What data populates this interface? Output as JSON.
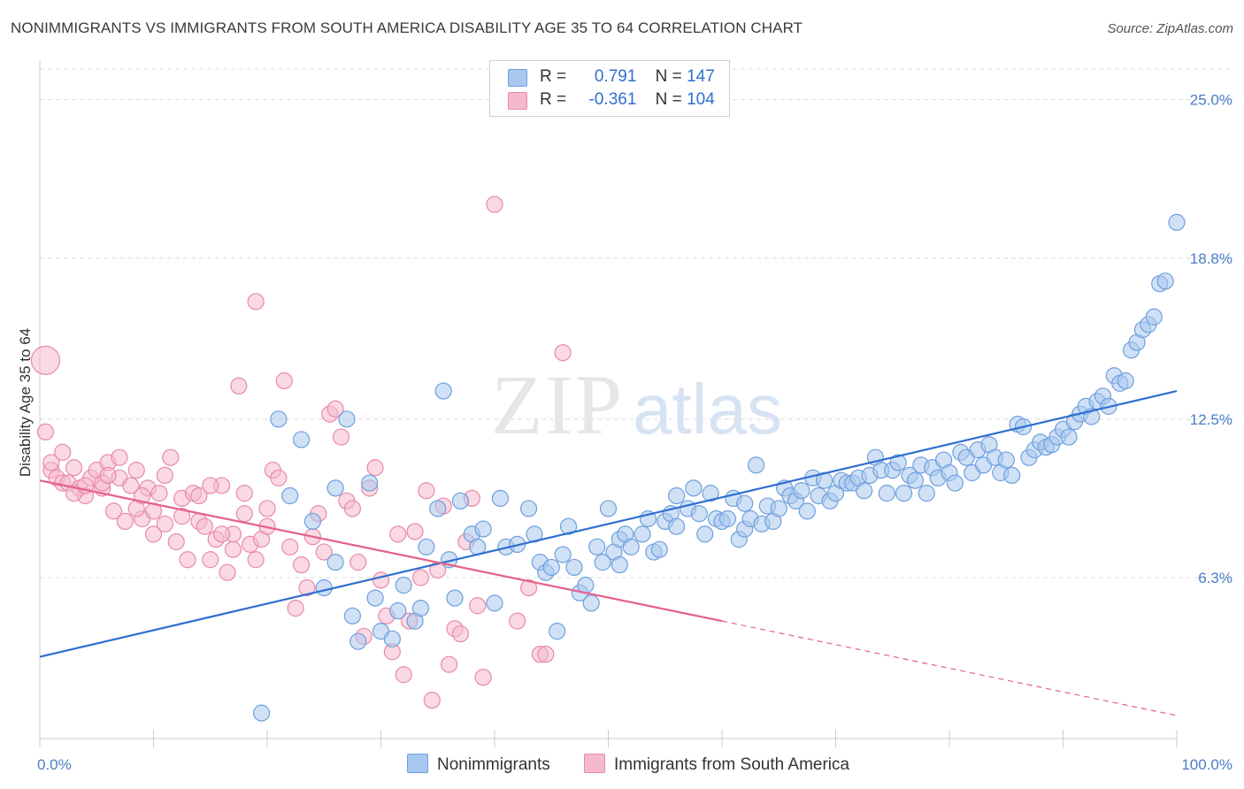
{
  "title": "NONIMMIGRANTS VS IMMIGRANTS FROM SOUTH AMERICA DISABILITY AGE 35 TO 64 CORRELATION CHART",
  "source": "Source: ZipAtlas.com",
  "watermark": {
    "zip": "ZIP",
    "atlas": "atlas"
  },
  "colors": {
    "blue_fill": "#a9c8ef",
    "blue_stroke": "#6e9fdd",
    "blue_line": "#2f6fd1",
    "pink_fill": "#f6b9cc",
    "pink_stroke": "#e88aa8",
    "pink_line": "#e5608c",
    "grid": "#d9d9d9",
    "tick_label": "#4a7cc7"
  },
  "legend": {
    "r_label": "R =",
    "n_label": "N =",
    "series": [
      {
        "r": "0.791",
        "n": "147"
      },
      {
        "r": "-0.361",
        "n": "104"
      }
    ]
  },
  "chart_data": {
    "type": "scatter",
    "ylabel": "Disability Age 35 to 64",
    "xlim": [
      0,
      100
    ],
    "ylim": [
      0,
      26.2
    ],
    "x_tick_labels": [
      "0.0%",
      "100.0%"
    ],
    "y_ticks": [
      6.3,
      12.5,
      18.8,
      25.0
    ],
    "y_tick_labels": [
      "6.3%",
      "12.5%",
      "18.8%",
      "25.0%"
    ],
    "legend_position": "bottom",
    "grid": true,
    "series": [
      {
        "name": "Nonimmigrants",
        "trend": {
          "x": [
            0,
            100
          ],
          "y": [
            3.2,
            13.6
          ]
        },
        "points": [
          [
            19.5,
            1.0
          ],
          [
            21,
            12.5
          ],
          [
            22,
            9.5
          ],
          [
            23,
            11.7
          ],
          [
            24,
            8.5
          ],
          [
            25,
            5.9
          ],
          [
            26,
            9.8
          ],
          [
            26,
            6.9
          ],
          [
            27,
            12.5
          ],
          [
            27.5,
            4.8
          ],
          [
            28,
            3.8
          ],
          [
            29,
            10
          ],
          [
            29.5,
            5.5
          ],
          [
            30,
            4.2
          ],
          [
            31,
            3.9
          ],
          [
            31.5,
            5.0
          ],
          [
            32,
            6.0
          ],
          [
            33,
            4.6
          ],
          [
            33.5,
            5.1
          ],
          [
            34,
            7.5
          ],
          [
            35,
            9.0
          ],
          [
            35.5,
            13.6
          ],
          [
            36,
            7.0
          ],
          [
            36.5,
            5.5
          ],
          [
            37,
            9.3
          ],
          [
            38,
            8.0
          ],
          [
            38.5,
            7.5
          ],
          [
            39,
            8.2
          ],
          [
            40,
            5.3
          ],
          [
            40.5,
            9.4
          ],
          [
            41,
            7.5
          ],
          [
            42,
            7.6
          ],
          [
            43,
            9.0
          ],
          [
            43.5,
            8.0
          ],
          [
            44,
            6.9
          ],
          [
            44.5,
            6.5
          ],
          [
            45,
            6.7
          ],
          [
            45.5,
            4.2
          ],
          [
            46,
            7.2
          ],
          [
            46.5,
            8.3
          ],
          [
            47,
            6.7
          ],
          [
            47.5,
            5.7
          ],
          [
            48,
            6.0
          ],
          [
            48.5,
            5.3
          ],
          [
            49,
            7.5
          ],
          [
            49.5,
            6.9
          ],
          [
            50,
            9.0
          ],
          [
            50.5,
            7.3
          ],
          [
            51,
            7.8
          ],
          [
            51.5,
            8.0
          ],
          [
            52,
            7.5
          ],
          [
            53,
            8.0
          ],
          [
            53.5,
            8.6
          ],
          [
            54,
            7.3
          ],
          [
            54.5,
            7.4
          ],
          [
            55,
            8.5
          ],
          [
            55.5,
            8.8
          ],
          [
            56,
            8.3
          ],
          [
            57,
            9.0
          ],
          [
            57.5,
            9.8
          ],
          [
            58,
            8.8
          ],
          [
            58.5,
            8.0
          ],
          [
            59,
            9.6
          ],
          [
            59.5,
            8.6
          ],
          [
            60,
            8.5
          ],
          [
            60.5,
            8.6
          ],
          [
            61,
            9.4
          ],
          [
            61.5,
            7.8
          ],
          [
            62,
            8.2
          ],
          [
            62.5,
            8.6
          ],
          [
            63,
            10.7
          ],
          [
            63.5,
            8.4
          ],
          [
            64,
            9.1
          ],
          [
            64.5,
            8.5
          ],
          [
            65,
            9.0
          ],
          [
            65.5,
            9.8
          ],
          [
            66,
            9.5
          ],
          [
            66.5,
            9.3
          ],
          [
            67,
            9.7
          ],
          [
            67.5,
            8.9
          ],
          [
            68,
            10.2
          ],
          [
            68.5,
            9.5
          ],
          [
            69,
            10.1
          ],
          [
            69.5,
            9.3
          ],
          [
            70,
            9.6
          ],
          [
            70.5,
            10.1
          ],
          [
            71,
            10.0
          ],
          [
            71.5,
            10.0
          ],
          [
            72,
            10.2
          ],
          [
            72.5,
            9.7
          ],
          [
            73,
            10.3
          ],
          [
            73.5,
            11.0
          ],
          [
            74,
            10.5
          ],
          [
            74.5,
            9.6
          ],
          [
            75,
            10.5
          ],
          [
            75.5,
            10.8
          ],
          [
            76,
            9.6
          ],
          [
            76.5,
            10.3
          ],
          [
            77,
            10.1
          ],
          [
            77.5,
            10.7
          ],
          [
            78,
            9.6
          ],
          [
            78.5,
            10.6
          ],
          [
            79,
            10.2
          ],
          [
            79.5,
            10.9
          ],
          [
            80,
            10.4
          ],
          [
            80.5,
            10.0
          ],
          [
            81,
            11.2
          ],
          [
            81.5,
            11.0
          ],
          [
            82,
            10.4
          ],
          [
            82.5,
            11.3
          ],
          [
            83,
            10.7
          ],
          [
            83.5,
            11.5
          ],
          [
            84,
            11.0
          ],
          [
            84.5,
            10.4
          ],
          [
            85,
            10.9
          ],
          [
            85.5,
            10.3
          ],
          [
            86,
            12.3
          ],
          [
            86.5,
            12.2
          ],
          [
            87,
            11.0
          ],
          [
            87.5,
            11.3
          ],
          [
            88,
            11.6
          ],
          [
            88.5,
            11.4
          ],
          [
            89,
            11.5
          ],
          [
            89.5,
            11.8
          ],
          [
            90,
            12.1
          ],
          [
            90.5,
            11.8
          ],
          [
            91,
            12.4
          ],
          [
            91.5,
            12.7
          ],
          [
            92,
            13.0
          ],
          [
            92.5,
            12.6
          ],
          [
            93,
            13.2
          ],
          [
            93.5,
            13.4
          ],
          [
            94,
            13.0
          ],
          [
            94.5,
            14.2
          ],
          [
            95,
            13.9
          ],
          [
            95.5,
            14.0
          ],
          [
            96,
            15.2
          ],
          [
            96.5,
            15.5
          ],
          [
            97,
            16.0
          ],
          [
            97.5,
            16.2
          ],
          [
            98,
            16.5
          ],
          [
            98.5,
            17.8
          ],
          [
            99,
            17.9
          ],
          [
            100,
            20.2
          ],
          [
            51,
            6.8
          ],
          [
            56,
            9.5
          ],
          [
            62,
            9.2
          ]
        ]
      },
      {
        "name": "Immigrants from South America",
        "trend": {
          "x": [
            0,
            60
          ],
          "y": [
            10.1,
            4.6
          ]
        },
        "trend_dashed": {
          "x": [
            60,
            100
          ],
          "y": [
            4.6,
            0.9
          ]
        },
        "points": [
          [
            0.5,
            14.8
          ],
          [
            0.5,
            12.0
          ],
          [
            1,
            10.5
          ],
          [
            1.5,
            10.2
          ],
          [
            2,
            10.0
          ],
          [
            2.5,
            10.0
          ],
          [
            3,
            10.6
          ],
          [
            3.5,
            9.8
          ],
          [
            4,
            9.5
          ],
          [
            4.5,
            10.2
          ],
          [
            5,
            10.5
          ],
          [
            5.5,
            9.8
          ],
          [
            6,
            10.8
          ],
          [
            6.5,
            8.9
          ],
          [
            7,
            10.2
          ],
          [
            7.5,
            8.5
          ],
          [
            8,
            9.9
          ],
          [
            8.5,
            10.5
          ],
          [
            9,
            8.6
          ],
          [
            9.5,
            9.8
          ],
          [
            10,
            8.0
          ],
          [
            10.5,
            9.6
          ],
          [
            11,
            8.4
          ],
          [
            11.5,
            11.0
          ],
          [
            12,
            7.7
          ],
          [
            12.5,
            9.4
          ],
          [
            13,
            7.0
          ],
          [
            13.5,
            9.6
          ],
          [
            14,
            8.5
          ],
          [
            14.5,
            8.3
          ],
          [
            15,
            7.0
          ],
          [
            15.5,
            7.8
          ],
          [
            16,
            9.9
          ],
          [
            16.5,
            6.5
          ],
          [
            17,
            8.0
          ],
          [
            17.5,
            13.8
          ],
          [
            18,
            8.8
          ],
          [
            18.5,
            7.6
          ],
          [
            19,
            17.1
          ],
          [
            19.5,
            7.8
          ],
          [
            20,
            9.0
          ],
          [
            20.5,
            10.5
          ],
          [
            21,
            10.2
          ],
          [
            21.5,
            14.0
          ],
          [
            22,
            7.5
          ],
          [
            22.5,
            5.1
          ],
          [
            23,
            6.8
          ],
          [
            23.5,
            5.9
          ],
          [
            24,
            7.9
          ],
          [
            24.5,
            8.8
          ],
          [
            25,
            7.3
          ],
          [
            25.5,
            12.7
          ],
          [
            26,
            12.9
          ],
          [
            26.5,
            11.8
          ],
          [
            27,
            9.3
          ],
          [
            27.5,
            9.0
          ],
          [
            28,
            6.9
          ],
          [
            28.5,
            4.0
          ],
          [
            29,
            9.8
          ],
          [
            29.5,
            10.6
          ],
          [
            30,
            6.2
          ],
          [
            30.5,
            4.8
          ],
          [
            31,
            3.4
          ],
          [
            31.5,
            8.0
          ],
          [
            32,
            2.5
          ],
          [
            32.5,
            4.6
          ],
          [
            33,
            8.1
          ],
          [
            33.5,
            6.3
          ],
          [
            34,
            9.7
          ],
          [
            34.5,
            1.5
          ],
          [
            35,
            6.6
          ],
          [
            35.5,
            9.1
          ],
          [
            36,
            2.9
          ],
          [
            36.5,
            4.3
          ],
          [
            37,
            4.1
          ],
          [
            37.5,
            7.7
          ],
          [
            38,
            9.4
          ],
          [
            38.5,
            5.2
          ],
          [
            39,
            2.4
          ],
          [
            40,
            20.9
          ],
          [
            42,
            4.6
          ],
          [
            43,
            5.9
          ],
          [
            44,
            3.3
          ],
          [
            44.5,
            3.3
          ],
          [
            46,
            15.1
          ],
          [
            1,
            10.8
          ],
          [
            2,
            11.2
          ],
          [
            3,
            9.6
          ],
          [
            4,
            9.9
          ],
          [
            5.5,
            10.0
          ],
          [
            6,
            10.3
          ],
          [
            7,
            11.0
          ],
          [
            8.5,
            9.0
          ],
          [
            9,
            9.5
          ],
          [
            10,
            8.9
          ],
          [
            11,
            10.3
          ],
          [
            12.5,
            8.7
          ],
          [
            14,
            9.5
          ],
          [
            15,
            9.9
          ],
          [
            16,
            8.0
          ],
          [
            17,
            7.4
          ],
          [
            18,
            9.6
          ],
          [
            19,
            7.0
          ],
          [
            20,
            8.3
          ]
        ]
      }
    ]
  }
}
